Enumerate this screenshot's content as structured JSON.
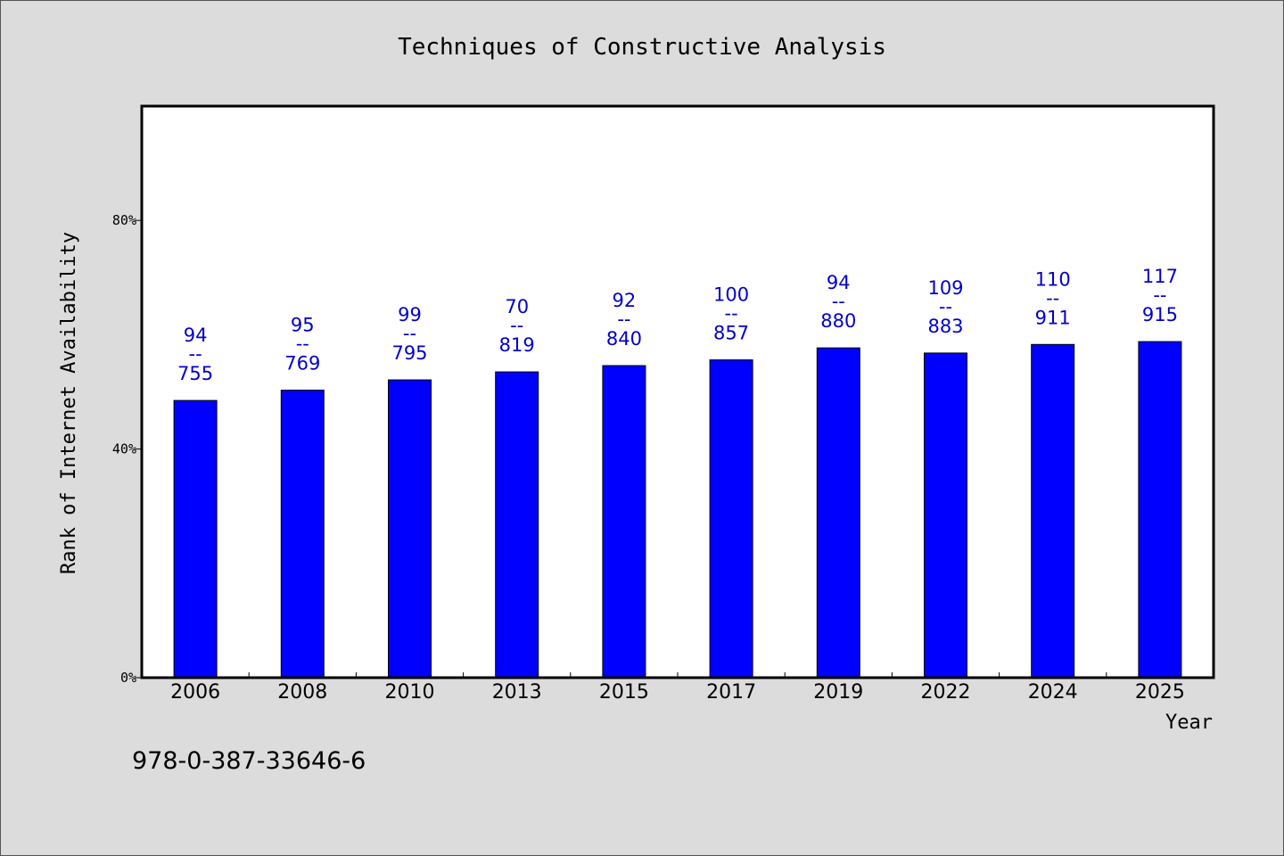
{
  "chart_data": {
    "type": "bar",
    "title": "Techniques of Constructive Analysis",
    "xlabel": "Year",
    "ylabel": "Rank of Internet Availability",
    "categories": [
      "2006",
      "2008",
      "2010",
      "2013",
      "2015",
      "2017",
      "2019",
      "2022",
      "2024",
      "2025"
    ],
    "series": [
      {
        "values": [
          48.5,
          50.3,
          52.1,
          53.5,
          54.6,
          55.6,
          57.7,
          56.8,
          58.3,
          58.8
        ],
        "labels_top": [
          "94",
          "95",
          "99",
          "70",
          "92",
          "100",
          "94",
          "109",
          "110",
          "117"
        ],
        "labels_bottom": [
          "755",
          "769",
          "795",
          "819",
          "840",
          "857",
          "880",
          "883",
          "911",
          "915"
        ]
      }
    ],
    "ylim": [
      0,
      100
    ],
    "yticks": [
      0,
      40,
      80
    ],
    "ytick_labels": [
      "0%",
      "40%",
      "80%"
    ],
    "label_separator": "--",
    "grid": false,
    "bar_color": "#0000ff",
    "label_color": "#0000cc"
  },
  "footer_text": "978-0-387-33646-6"
}
